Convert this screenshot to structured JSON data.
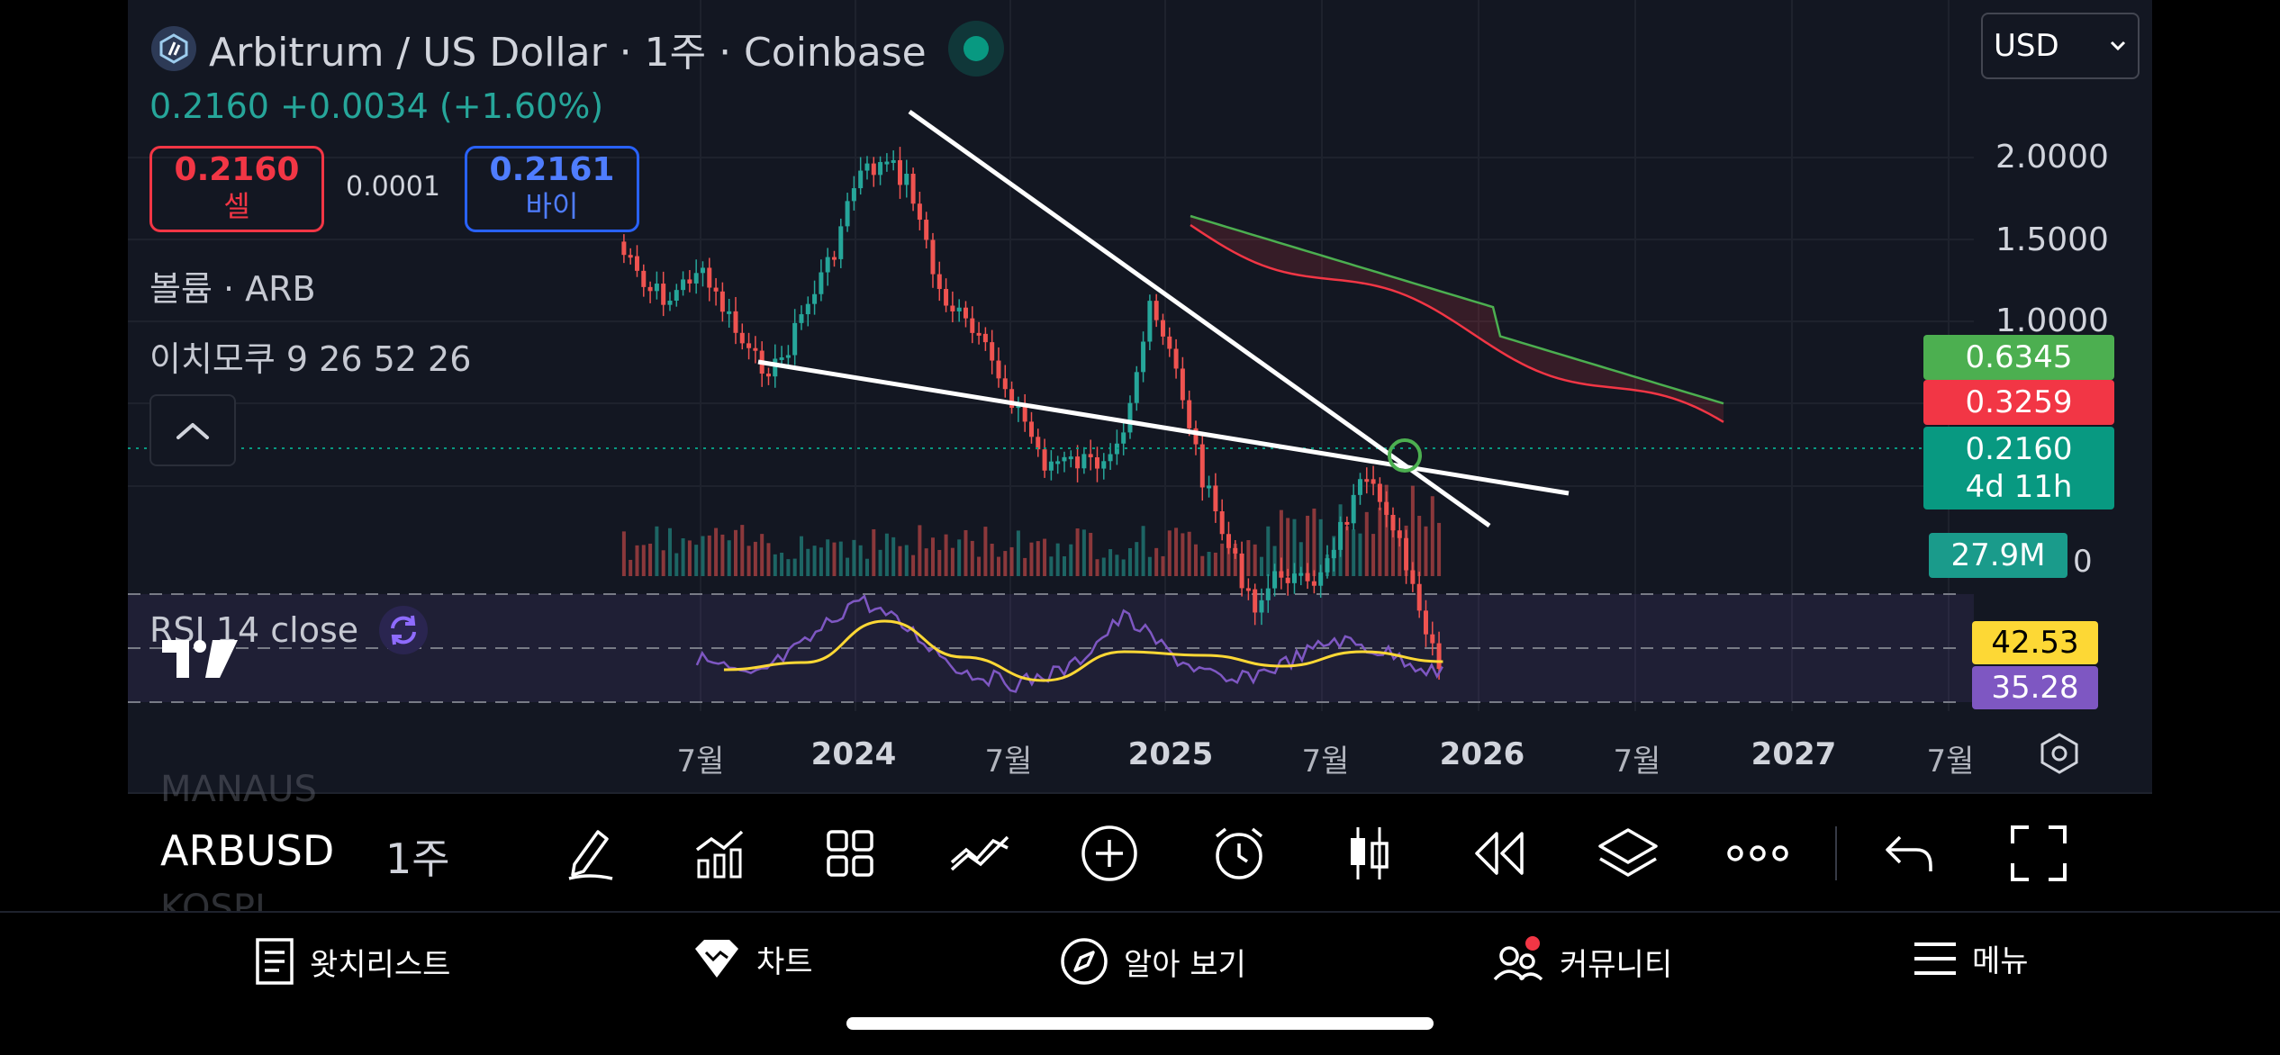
{
  "header": {
    "symbol_title": "Arbitrum / US Dollar · 1주 · Coinbase",
    "price_change": "0.2160  +0.0034 (+1.60%)",
    "sell": {
      "price": "0.2160",
      "label": "셀"
    },
    "buy": {
      "price": "0.2161",
      "label": "바이"
    },
    "spread": "0.0001",
    "volume_legend": "볼륨 · ARB",
    "ichimoku_legend": "이치모쿠 9 26 52 26",
    "currency": "USD"
  },
  "price_axis": {
    "ticks": [
      "2.0000",
      "1.5000",
      "1.0000"
    ],
    "tags": {
      "span_a": "0.6345",
      "span_b": "0.3259",
      "last_price": "0.2160",
      "countdown": "4d 11h",
      "volume": "27.9M",
      "volume_tick_fragment": "0"
    },
    "colors": {
      "span_a": "#4caf50",
      "span_b": "#f23645",
      "last": "#089981",
      "volume": "#1a9b8b"
    }
  },
  "rsi": {
    "label": "RSI 14 close",
    "value_ma": "42.53",
    "value_rsi": "35.28",
    "colors": {
      "ma": "#fdd835",
      "rsi": "#7e57c2"
    }
  },
  "time_axis": {
    "labels": [
      {
        "text": "7월",
        "year": false
      },
      {
        "text": "2024",
        "year": true
      },
      {
        "text": "7월",
        "year": false
      },
      {
        "text": "2025",
        "year": true
      },
      {
        "text": "7월",
        "year": false
      },
      {
        "text": "2026",
        "year": true
      },
      {
        "text": "7월",
        "year": false
      },
      {
        "text": "2027",
        "year": true
      },
      {
        "text": "7월",
        "year": false
      }
    ]
  },
  "toolbar": {
    "symbol": "ARBUSD",
    "interval": "1주",
    "ghost_above": "MANAUS",
    "ghost_below": "KOSPI"
  },
  "bottom_nav": {
    "items": [
      {
        "label": "왓치리스트",
        "icon": "watchlist-icon"
      },
      {
        "label": "차트",
        "icon": "chart-icon"
      },
      {
        "label": "알아 보기",
        "icon": "compass-icon"
      },
      {
        "label": "커뮤니티",
        "icon": "community-icon"
      },
      {
        "label": "메뉴",
        "icon": "menu-icon"
      }
    ]
  },
  "chart_data": {
    "type": "candlestick",
    "symbol": "ARBUSD",
    "interval": "1W",
    "y_scale": "log",
    "x_range": [
      "2023-04",
      "2025-11"
    ],
    "price_path": [
      [
        "2023-04",
        1.4
      ],
      [
        "2023-05",
        1.15
      ],
      [
        "2023-06",
        1.1
      ],
      [
        "2023-07",
        1.25
      ],
      [
        "2023-08",
        1.05
      ],
      [
        "2023-09",
        0.85
      ],
      [
        "2023-10",
        0.82
      ],
      [
        "2023-11",
        1.05
      ],
      [
        "2023-12",
        1.3
      ],
      [
        "2024-01",
        1.85
      ],
      [
        "2024-02",
        1.95
      ],
      [
        "2024-03",
        1.8
      ],
      [
        "2024-04",
        1.15
      ],
      [
        "2024-05",
        1.0
      ],
      [
        "2024-06",
        0.85
      ],
      [
        "2024-07",
        0.7
      ],
      [
        "2024-08",
        0.55
      ],
      [
        "2024-09",
        0.55
      ],
      [
        "2024-10",
        0.55
      ],
      [
        "2024-11",
        0.65
      ],
      [
        "2024-12",
        1.05
      ],
      [
        "2025-01",
        0.8
      ],
      [
        "2025-02",
        0.5
      ],
      [
        "2025-03",
        0.38
      ],
      [
        "2025-04",
        0.3
      ],
      [
        "2025-05",
        0.35
      ],
      [
        "2025-06",
        0.32
      ],
      [
        "2025-07",
        0.4
      ],
      [
        "2025-08",
        0.5
      ],
      [
        "2025-09",
        0.45
      ],
      [
        "2025-10",
        0.3
      ],
      [
        "2025-11",
        0.216
      ]
    ],
    "rsi_path": [
      [
        "2023-07",
        45
      ],
      [
        "2023-09",
        33
      ],
      [
        "2023-11",
        52
      ],
      [
        "2024-01",
        78
      ],
      [
        "2024-03",
        60
      ],
      [
        "2024-05",
        37
      ],
      [
        "2024-07",
        30
      ],
      [
        "2024-09",
        39
      ],
      [
        "2024-11",
        68
      ],
      [
        "2025-01",
        44
      ],
      [
        "2025-03",
        30
      ],
      [
        "2025-05",
        41
      ],
      [
        "2025-07",
        55
      ],
      [
        "2025-09",
        47
      ],
      [
        "2025-11",
        35.28
      ]
    ],
    "rsi_ma_path": [
      [
        "2023-08",
        38
      ],
      [
        "2023-11",
        42
      ],
      [
        "2024-02",
        65
      ],
      [
        "2024-05",
        45
      ],
      [
        "2024-08",
        32
      ],
      [
        "2024-11",
        48
      ],
      [
        "2025-02",
        46
      ],
      [
        "2025-05",
        40
      ],
      [
        "2025-08",
        48
      ],
      [
        "2025-11",
        42.53
      ]
    ],
    "last_price": 0.216,
    "countdown": "4d 11h",
    "volume": "27.9M",
    "ichimoku": {
      "params": [
        9,
        26,
        52,
        26
      ],
      "span_a_last": 0.6345,
      "span_b_last": 0.3259
    },
    "trendlines": "falling wedge: upper line from ~2.3 (2024-03) down to ~0.15, lower line from ~0.8 (2023-09) to ~0.18",
    "colors": {
      "up": "#26a69a",
      "down": "#ef5350",
      "trendline": "#ffffff",
      "cloud": "#4caf50"
    }
  }
}
